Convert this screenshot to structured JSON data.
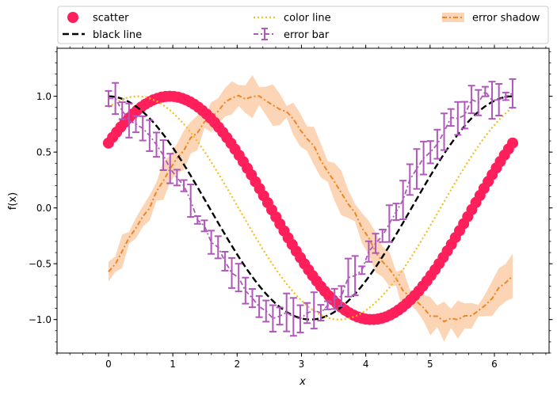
{
  "chart_data": {
    "type": "line",
    "title": "",
    "xlabel": "x",
    "ylabel": "f(x)",
    "xlim": [
      -0.8,
      6.85
    ],
    "ylim": [
      -1.3,
      1.43
    ],
    "xticks": [
      0,
      1,
      2,
      3,
      4,
      5,
      6
    ],
    "yticks": [
      -1.0,
      -0.5,
      0.0,
      0.5,
      1.0
    ],
    "x_minor_step": 0.2,
    "y_minor_step": 0.1,
    "legend_position": "top, above plot, 3 columns",
    "legend": {
      "scatter": "scatter",
      "black_line": "black line",
      "color_line": "color line",
      "error_bar": "error bar",
      "error_shadow": "error shadow"
    },
    "colors": {
      "scatter": "#ff1f5b",
      "black_line": "#000000",
      "color_line": "#f5bd1f",
      "error_bar": "#af58ba",
      "error_shadow_line": "#f28522",
      "error_shadow_fill": "#fbd5b5"
    },
    "series": [
      {
        "key": "scatter",
        "name": "scatter",
        "kind": "scatter",
        "function": "sin(x + 0.62)",
        "x_start": 0.0,
        "x_end": 6.283,
        "points": 100
      },
      {
        "key": "black_line",
        "name": "black line",
        "kind": "dashed line",
        "function": "cos(x)",
        "x_start": 0.0,
        "x_end": 6.283,
        "points": 100
      },
      {
        "key": "color_line",
        "name": "color line",
        "kind": "dotted line",
        "function": "cos(x - 0.45)",
        "x_start": 0.0,
        "x_end": 6.283,
        "points": 100
      },
      {
        "key": "error_bar",
        "name": "error bar",
        "kind": "dash-dot line with error bars",
        "function": "cos(x + 0.25) with noise",
        "x_start": 0.0,
        "x_end": 6.283,
        "points": 60,
        "error_range": [
          0.03,
          0.18
        ]
      },
      {
        "key": "error_shadow",
        "name": "error shadow",
        "kind": "dash-dot line with shaded band",
        "function": "sin(x - 0.62) with noise",
        "x_start": 0.0,
        "x_end": 6.283,
        "points": 60,
        "band_range": [
          0.05,
          0.2
        ]
      }
    ]
  }
}
